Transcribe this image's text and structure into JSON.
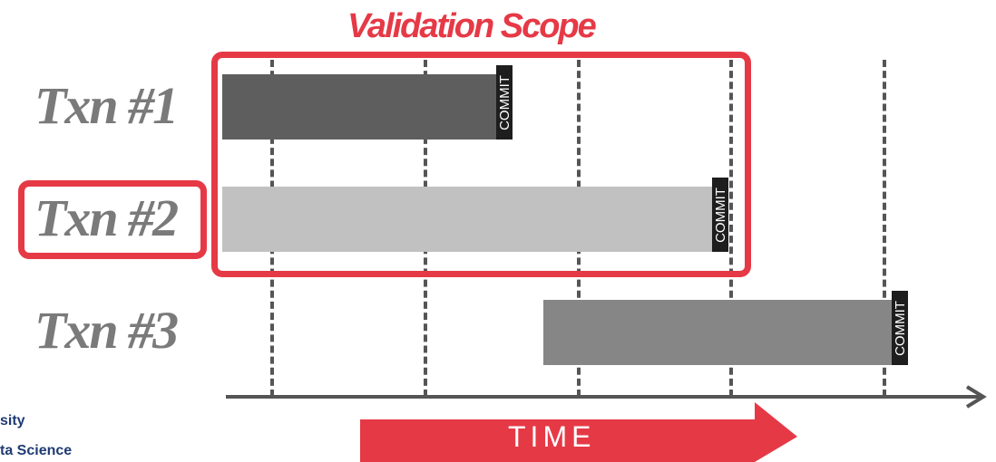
{
  "scope": {
    "title": "Validation Scope"
  },
  "transactions": [
    {
      "label": "Txn #1",
      "commit": "COMMIT",
      "color": "#5e5e5e"
    },
    {
      "label": "Txn #2",
      "commit": "COMMIT",
      "color": "#c1c1c1"
    },
    {
      "label": "Txn #3",
      "commit": "COMMIT",
      "color": "#868686"
    }
  ],
  "axis": {
    "label": "TIME"
  },
  "footer": {
    "line1": "sity",
    "line2": "ta Science"
  },
  "colors": {
    "highlight": "#e63946",
    "gridline": "#555555",
    "axis": "#555555"
  }
}
